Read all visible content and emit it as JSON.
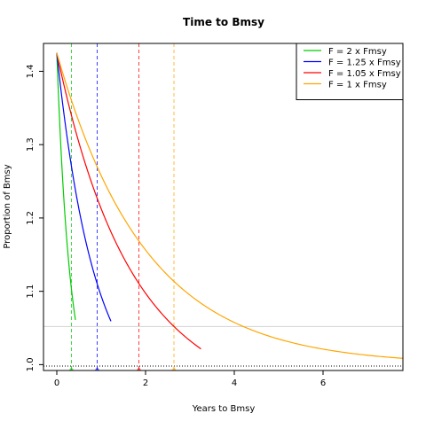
{
  "chart_data": {
    "type": "line",
    "title": "Time to Bmsy",
    "xlabel": "Years to Bmsy",
    "ylabel": "Proportion of Bmsy",
    "xlim": [
      -0.3,
      7.8
    ],
    "ylim": [
      0.992,
      1.438
    ],
    "x_ticks": [
      0,
      2,
      4,
      6
    ],
    "y_ticks": [
      1.0,
      1.1,
      1.2,
      1.3,
      1.4
    ],
    "y_tick_labels": [
      "1.0",
      "1.1",
      "1.2",
      "1.3",
      "1.4"
    ],
    "grid": false,
    "legend_position": "top-right",
    "start_value": 1.425,
    "reference_lines": {
      "black_dotted_y": 0.998,
      "gray_solid_y": 1.052
    },
    "series": [
      {
        "name": "F = 2 x Fmsy",
        "color": "#00cc00",
        "rate": 3.67,
        "end_x": 0.42,
        "years_to_bmsy": 0.33
      },
      {
        "name": "F = 1.25 x Fmsy",
        "color": "#0000ff",
        "rate": 1.28,
        "end_x": 1.22,
        "years_to_bmsy": 0.91
      },
      {
        "name": "F = 1.05 x Fmsy",
        "color": "#ff0000",
        "rate": 0.65,
        "end_x": 3.25,
        "years_to_bmsy": 1.85
      },
      {
        "name": "F = 1 x Fmsy",
        "color": "#ffa500",
        "rate": 0.5,
        "end_x": 7.8,
        "years_to_bmsy": 2.64
      }
    ]
  }
}
